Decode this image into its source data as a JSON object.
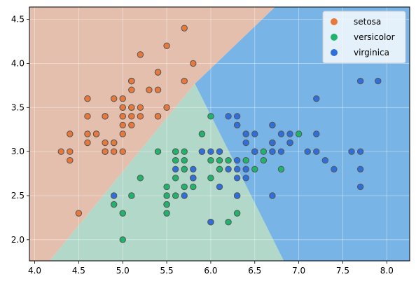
{
  "chart_data": {
    "type": "scatter",
    "title": "",
    "xlabel": "",
    "ylabel": "",
    "xlim": [
      3.94,
      8.26
    ],
    "ylim": [
      1.76,
      4.64
    ],
    "x_ticks": [
      4.0,
      4.5,
      5.0,
      5.5,
      6.0,
      6.5,
      7.0,
      7.5,
      8.0
    ],
    "x_tick_labels": [
      "4.0",
      "4.5",
      "5.0",
      "5.5",
      "6.0",
      "6.5",
      "7.0",
      "7.5",
      "8.0"
    ],
    "y_ticks": [
      2.0,
      2.5,
      3.0,
      3.5,
      4.0,
      4.5
    ],
    "y_tick_labels": [
      "2.0",
      "2.5",
      "3.0",
      "3.5",
      "4.0",
      "4.5"
    ],
    "grid": true,
    "legend_position": "top-right",
    "decision_regions": [
      {
        "class": "setosa",
        "color": "#e4bfae",
        "polygon": [
          [
            3.94,
            1.76
          ],
          [
            4.17,
            1.76
          ],
          [
            5.82,
            3.77
          ],
          [
            6.73,
            4.64
          ],
          [
            3.94,
            4.64
          ]
        ]
      },
      {
        "class": "versicolor",
        "color": "#b1d8c8",
        "polygon": [
          [
            4.17,
            1.76
          ],
          [
            6.83,
            1.76
          ],
          [
            5.82,
            3.77
          ]
        ]
      },
      {
        "class": "virginica",
        "color": "#78b5e6",
        "polygon": [
          [
            6.83,
            1.76
          ],
          [
            8.26,
            1.76
          ],
          [
            8.26,
            4.64
          ],
          [
            6.73,
            4.64
          ],
          [
            5.82,
            3.77
          ]
        ]
      }
    ],
    "series": [
      {
        "name": "setosa",
        "color": "#e8793a",
        "points": [
          [
            5.1,
            3.5
          ],
          [
            4.9,
            3.0
          ],
          [
            4.7,
            3.2
          ],
          [
            4.6,
            3.1
          ],
          [
            5.0,
            3.6
          ],
          [
            5.4,
            3.9
          ],
          [
            4.6,
            3.4
          ],
          [
            5.0,
            3.4
          ],
          [
            4.4,
            2.9
          ],
          [
            4.9,
            3.1
          ],
          [
            5.4,
            3.7
          ],
          [
            4.8,
            3.4
          ],
          [
            4.8,
            3.0
          ],
          [
            4.3,
            3.0
          ],
          [
            5.8,
            4.0
          ],
          [
            5.7,
            4.4
          ],
          [
            5.4,
            3.9
          ],
          [
            5.1,
            3.5
          ],
          [
            5.7,
            3.8
          ],
          [
            5.1,
            3.8
          ],
          [
            5.4,
            3.4
          ],
          [
            5.1,
            3.7
          ],
          [
            4.6,
            3.6
          ],
          [
            5.1,
            3.3
          ],
          [
            4.8,
            3.4
          ],
          [
            5.0,
            3.0
          ],
          [
            5.0,
            3.4
          ],
          [
            5.2,
            3.5
          ],
          [
            5.2,
            3.4
          ],
          [
            4.7,
            3.2
          ],
          [
            4.8,
            3.1
          ],
          [
            5.4,
            3.4
          ],
          [
            5.2,
            4.1
          ],
          [
            5.5,
            4.2
          ],
          [
            4.9,
            3.1
          ],
          [
            5.0,
            3.2
          ],
          [
            5.5,
            3.5
          ],
          [
            4.9,
            3.6
          ],
          [
            4.4,
            3.0
          ],
          [
            5.1,
            3.4
          ],
          [
            5.0,
            3.5
          ],
          [
            4.5,
            2.3
          ],
          [
            4.4,
            3.2
          ],
          [
            5.0,
            3.5
          ],
          [
            5.1,
            3.8
          ],
          [
            4.8,
            3.0
          ],
          [
            5.1,
            3.8
          ],
          [
            4.6,
            3.2
          ],
          [
            5.3,
            3.7
          ],
          [
            5.0,
            3.3
          ]
        ]
      },
      {
        "name": "versicolor",
        "color": "#1fb36b",
        "points": [
          [
            7.0,
            3.2
          ],
          [
            6.4,
            3.2
          ],
          [
            6.9,
            3.1
          ],
          [
            5.5,
            2.3
          ],
          [
            6.5,
            2.8
          ],
          [
            5.7,
            2.8
          ],
          [
            6.3,
            3.3
          ],
          [
            4.9,
            2.4
          ],
          [
            6.6,
            2.9
          ],
          [
            5.2,
            2.7
          ],
          [
            5.0,
            2.0
          ],
          [
            5.9,
            3.0
          ],
          [
            6.0,
            2.2
          ],
          [
            6.1,
            2.9
          ],
          [
            5.6,
            2.9
          ],
          [
            6.7,
            3.1
          ],
          [
            5.6,
            3.0
          ],
          [
            5.8,
            2.7
          ],
          [
            6.2,
            2.2
          ],
          [
            5.6,
            2.5
          ],
          [
            5.9,
            3.2
          ],
          [
            6.1,
            2.8
          ],
          [
            6.3,
            2.5
          ],
          [
            6.1,
            2.8
          ],
          [
            6.4,
            2.9
          ],
          [
            6.6,
            3.0
          ],
          [
            6.8,
            2.8
          ],
          [
            6.7,
            3.0
          ],
          [
            6.0,
            2.9
          ],
          [
            5.7,
            2.6
          ],
          [
            5.5,
            2.4
          ],
          [
            5.5,
            2.4
          ],
          [
            5.8,
            2.7
          ],
          [
            6.0,
            2.7
          ],
          [
            5.4,
            3.0
          ],
          [
            6.0,
            3.4
          ],
          [
            6.7,
            3.1
          ],
          [
            6.3,
            2.3
          ],
          [
            5.6,
            3.0
          ],
          [
            5.5,
            2.5
          ],
          [
            5.5,
            2.6
          ],
          [
            6.1,
            3.0
          ],
          [
            5.8,
            2.6
          ],
          [
            5.0,
            2.3
          ],
          [
            5.6,
            2.7
          ],
          [
            5.7,
            3.0
          ],
          [
            5.7,
            2.9
          ],
          [
            6.2,
            2.9
          ],
          [
            5.1,
            2.5
          ],
          [
            5.7,
            2.8
          ]
        ]
      },
      {
        "name": "virginica",
        "color": "#2f6fdc",
        "points": [
          [
            6.3,
            3.3
          ],
          [
            5.8,
            2.7
          ],
          [
            7.1,
            3.0
          ],
          [
            6.3,
            2.9
          ],
          [
            6.5,
            3.0
          ],
          [
            7.6,
            3.0
          ],
          [
            4.9,
            2.5
          ],
          [
            7.3,
            2.9
          ],
          [
            6.7,
            2.5
          ],
          [
            7.2,
            3.6
          ],
          [
            6.5,
            3.2
          ],
          [
            6.4,
            2.7
          ],
          [
            6.8,
            3.0
          ],
          [
            5.7,
            2.5
          ],
          [
            5.8,
            2.8
          ],
          [
            6.4,
            3.2
          ],
          [
            6.5,
            3.0
          ],
          [
            7.7,
            3.8
          ],
          [
            7.7,
            2.6
          ],
          [
            6.0,
            2.2
          ],
          [
            6.9,
            3.2
          ],
          [
            5.6,
            2.8
          ],
          [
            7.7,
            2.8
          ],
          [
            6.3,
            2.7
          ],
          [
            6.7,
            3.3
          ],
          [
            7.2,
            3.2
          ],
          [
            6.2,
            2.8
          ],
          [
            6.1,
            3.0
          ],
          [
            6.4,
            2.8
          ],
          [
            7.2,
            3.0
          ],
          [
            7.4,
            2.8
          ],
          [
            7.9,
            3.8
          ],
          [
            6.4,
            2.8
          ],
          [
            6.3,
            2.8
          ],
          [
            6.1,
            2.6
          ],
          [
            7.7,
            3.0
          ],
          [
            6.3,
            3.4
          ],
          [
            6.4,
            3.1
          ],
          [
            6.0,
            3.0
          ],
          [
            6.9,
            3.1
          ],
          [
            6.7,
            3.1
          ],
          [
            6.9,
            3.1
          ],
          [
            5.8,
            2.7
          ],
          [
            6.8,
            3.2
          ],
          [
            6.7,
            3.3
          ],
          [
            6.7,
            3.0
          ],
          [
            6.3,
            2.5
          ],
          [
            6.5,
            3.0
          ],
          [
            6.2,
            3.4
          ],
          [
            5.9,
            3.0
          ]
        ]
      }
    ]
  }
}
